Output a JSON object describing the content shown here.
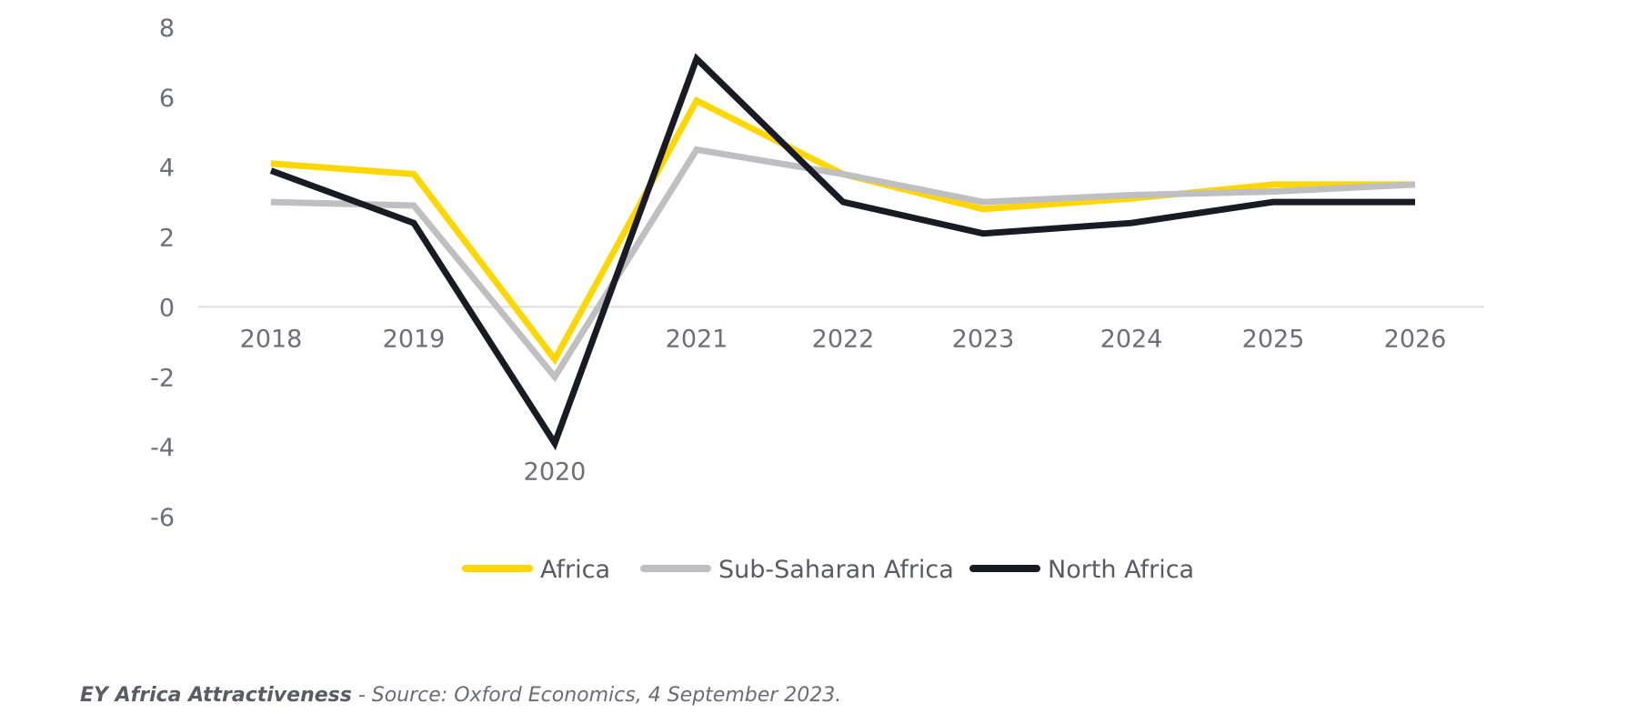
{
  "chart_data": {
    "type": "line",
    "title": "",
    "xlabel": "",
    "ylabel": "",
    "x": [
      "2018",
      "2019",
      "2020",
      "2021",
      "2022",
      "2023",
      "2024",
      "2025",
      "2026"
    ],
    "ylim": [
      -6,
      8
    ],
    "yticks": [
      "8",
      "6",
      "4",
      "2",
      "0",
      "-2",
      "-4",
      "-6"
    ],
    "grid": false,
    "legend_position": "bottom-center",
    "series": [
      {
        "name": "Africa",
        "color": "#FFD700",
        "values": [
          4.1,
          3.8,
          -1.5,
          5.9,
          3.8,
          2.8,
          3.1,
          3.5,
          3.5
        ]
      },
      {
        "name": "Sub-Saharan Africa",
        "color": "#BFBFC1",
        "values": [
          3.0,
          2.9,
          -2.0,
          4.5,
          3.8,
          3.0,
          3.2,
          3.3,
          3.5
        ]
      },
      {
        "name": "North Africa",
        "color": "#1A1A24",
        "values": [
          3.9,
          2.4,
          -3.9,
          7.1,
          3.0,
          2.1,
          2.4,
          3.0,
          3.0
        ]
      }
    ]
  },
  "source": {
    "bold": "EY Africa Attractiveness",
    "text": " - Source: Oxford Economics, 4 September 2023."
  }
}
